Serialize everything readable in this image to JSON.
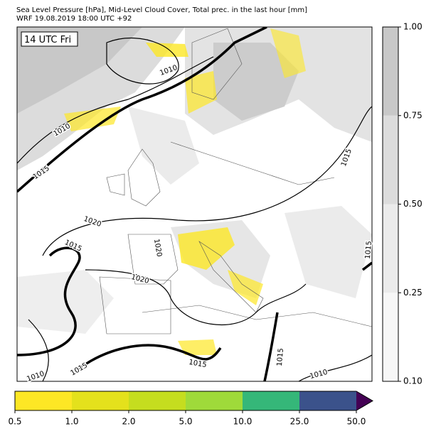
{
  "header": {
    "lines": [
      "Sea Level Pressure [hPa], Mid-Level Cloud Cover, Total prec. in the last hour [mm]",
      "WRF 19.08.2019 18:00 UTC +92"
    ]
  },
  "map": {
    "time_label": "14 UTC Fri",
    "isobar_labels": [
      "1010",
      "1010",
      "1015",
      "1020",
      "1015",
      "1020",
      "1020",
      "1015",
      "1015",
      "1015",
      "1015",
      "1015",
      "1010",
      "1010"
    ]
  },
  "cloud_colorbar": {
    "ticks": [
      {
        "value": 0.1,
        "label": "0.10"
      },
      {
        "value": 0.25,
        "label": "0.25"
      },
      {
        "value": 0.5,
        "label": "0.50"
      },
      {
        "value": 0.75,
        "label": "0.75"
      },
      {
        "value": 1,
        "label": "1.00"
      }
    ],
    "colors": [
      "#f7f7f7",
      "#ebebeb",
      "#dcdcdc",
      "#c8c8c8"
    ]
  },
  "precip_colorbar": {
    "ticks": [
      0.5,
      {
        "value": 1,
        "label": "1.0"
      },
      {
        "value": 2,
        "label": "2.0"
      },
      {
        "value": 5,
        "label": "5.0"
      },
      {
        "value": 10,
        "label": "10.0"
      },
      {
        "value": 25,
        "label": "25.0"
      },
      {
        "value": 50,
        "label": "50.0"
      }
    ],
    "colors": [
      "#fde725",
      "#e4e11c",
      "#c5dd1f",
      "#9fda3a",
      "#35b779",
      "#3b528b"
    ],
    "extend_color": "#440154"
  }
}
